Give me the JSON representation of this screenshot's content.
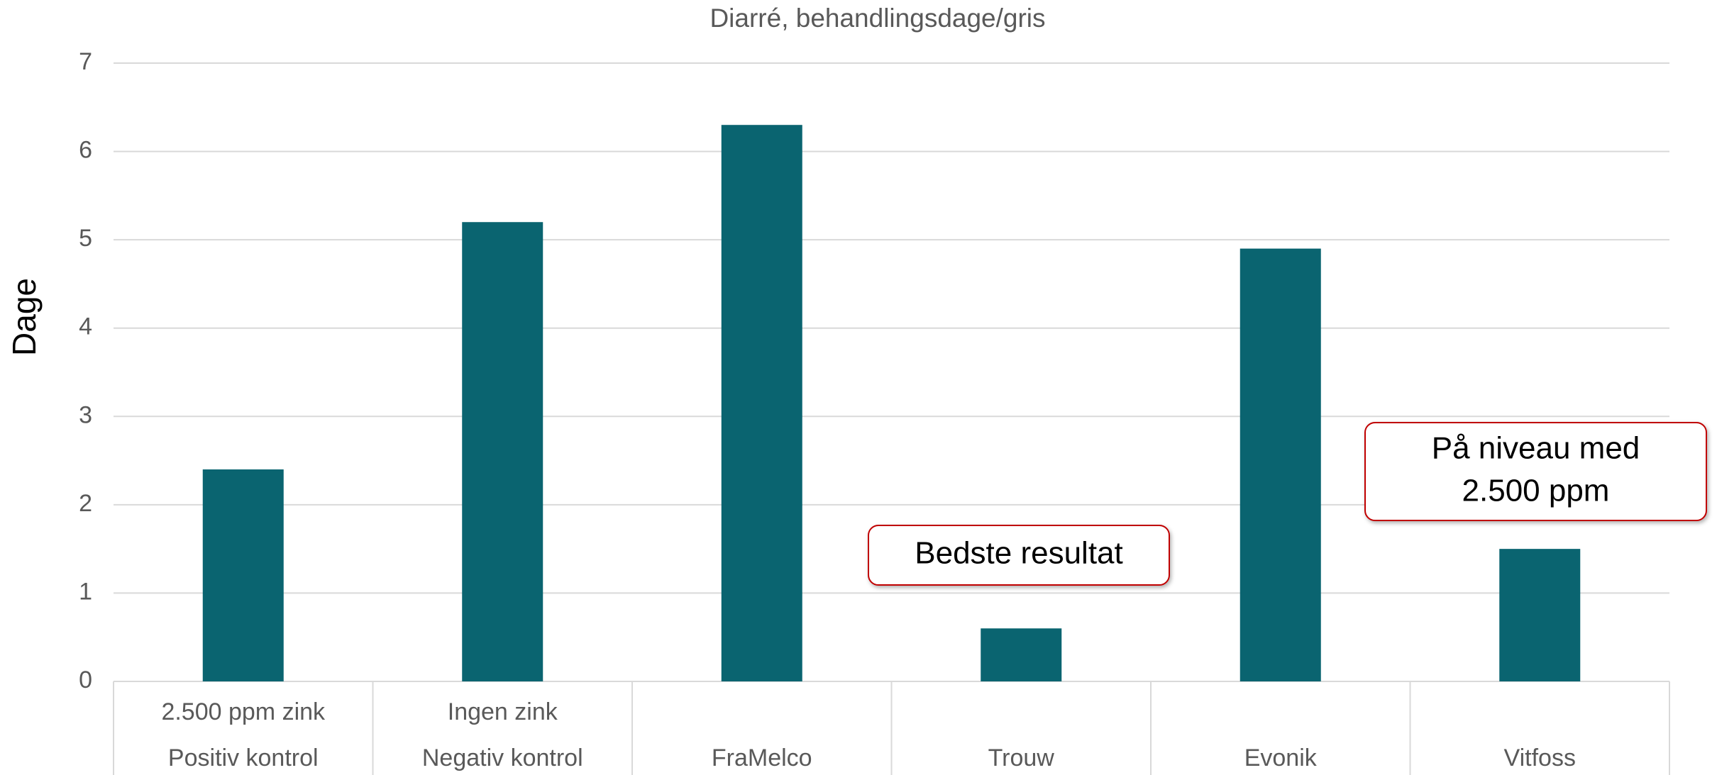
{
  "chart_data": {
    "type": "bar",
    "title": "Diarré, behandlingsdage/gris",
    "y_label": "Dage",
    "categories": [
      "Positiv kontrol",
      "Negativ kontrol",
      "FraMelco",
      "Trouw",
      "Evonik",
      "Vitfoss"
    ],
    "category_sublabels": [
      "2.500 ppm zink",
      "Ingen zink",
      null,
      null,
      null,
      null
    ],
    "values": [
      2.4,
      5.2,
      6.3,
      0.6,
      4.9,
      1.5
    ],
    "color": "#0a6470",
    "ylim": [
      0,
      7
    ],
    "yticks": [
      0,
      1,
      2,
      3,
      4,
      5,
      6,
      7
    ],
    "grid": true,
    "annotations": [
      {
        "lines": [
          "Bedste resultat"
        ]
      },
      {
        "lines": [
          "På niveau med",
          "2.500 ppm"
        ]
      }
    ]
  }
}
